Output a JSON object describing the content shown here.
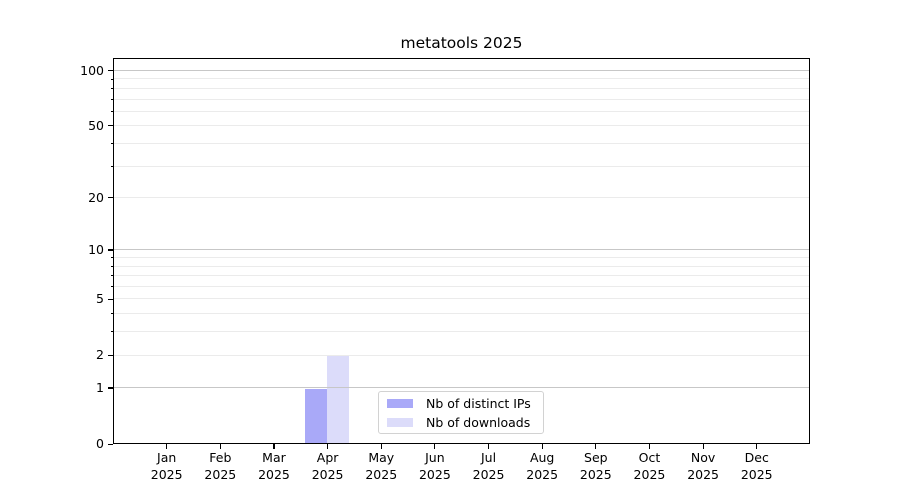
{
  "chart_data": {
    "type": "bar",
    "title": "metatools 2025",
    "categories": [
      "Jan",
      "Feb",
      "Mar",
      "Apr",
      "May",
      "Jun",
      "Jul",
      "Aug",
      "Sep",
      "Oct",
      "Nov",
      "Dec"
    ],
    "category_year": "2025",
    "series": [
      {
        "name": "Nb of distinct IPs",
        "color": "#a9a9f8",
        "values": [
          0,
          0,
          0,
          1,
          0,
          0,
          0,
          0,
          0,
          0,
          0,
          0
        ]
      },
      {
        "name": "Nb of downloads",
        "color": "#dcdcfa",
        "values": [
          0,
          0,
          0,
          2,
          0,
          0,
          0,
          0,
          0,
          0,
          0,
          0
        ]
      }
    ],
    "y_axis": {
      "scale": "log1p",
      "tick_labels": [
        0,
        1,
        2,
        5,
        10,
        20,
        50,
        100
      ],
      "major_gridline_values": [
        1,
        10,
        100
      ],
      "minor_gridline_values": [
        2,
        3,
        4,
        5,
        6,
        7,
        8,
        9,
        20,
        30,
        40,
        50,
        60,
        70,
        80,
        90
      ],
      "minor_tick_values": [
        3,
        4,
        6,
        7,
        8,
        9,
        30,
        40,
        60,
        70,
        80,
        90
      ],
      "ylim": [
        0,
        117
      ]
    },
    "xlabel": "",
    "ylabel": "",
    "grid": true,
    "legend_position": "lower center",
    "colors": {
      "major_grid": "#c7c7c7",
      "minor_grid": "#ebebeb",
      "spine": "#000000",
      "text": "#000000",
      "legend_border": "#d2d2d2"
    }
  }
}
